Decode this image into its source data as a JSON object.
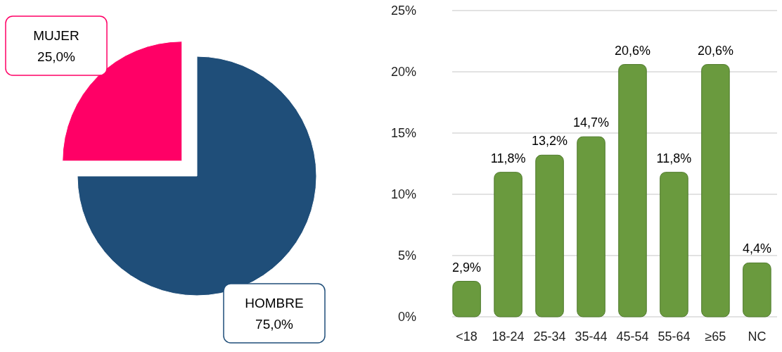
{
  "chart_data": [
    {
      "type": "pie",
      "categories": [
        "MUJER",
        "HOMBRE"
      ],
      "values": [
        25,
        75
      ],
      "colors": [
        "#ff0066",
        "#1f4e79"
      ],
      "value_labels": [
        "25,0%",
        "75,0%"
      ]
    },
    {
      "type": "bar",
      "categories": [
        "<18",
        "18-24",
        "25-34",
        "35-44",
        "45-54",
        "55-64",
        "≥65",
        "NC"
      ],
      "values": [
        2.9,
        11.8,
        13.2,
        14.7,
        20.6,
        11.8,
        20.6,
        4.4
      ],
      "color": "#6a9a3e",
      "value_labels": [
        "2,9%",
        "11,8%",
        "13,2%",
        "14,7%",
        "20,6%",
        "11,8%",
        "20,6%",
        "4,4%"
      ],
      "ylim": [
        0,
        25
      ],
      "yticks": [
        {
          "value": 0,
          "label": "0%"
        },
        {
          "value": 5,
          "label": "5%"
        },
        {
          "value": 10,
          "label": "10%"
        },
        {
          "value": 15,
          "label": "15%"
        },
        {
          "value": 20,
          "label": "20%"
        },
        {
          "value": 25,
          "label": "25%"
        }
      ],
      "grid": "y"
    }
  ]
}
